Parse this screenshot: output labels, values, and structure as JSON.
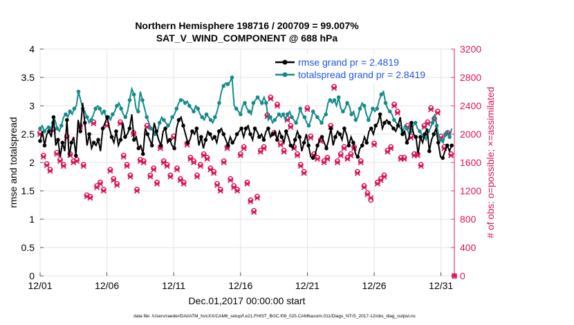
{
  "chart_data": {
    "type": "line",
    "title_line1": "Northern Hemisphere 198716 / 200709 = 99.007%",
    "title_line2": "SAT_V_WIND_COMPONENT @ 688 hPa",
    "xlabel": "Dec.01,2017 00:00:00 start",
    "ylabel_left": "rmse and totalspread",
    "ylabel_right": "# of obs: o=possible; ×=assimilated",
    "footer": "data file: /Users/raeder/DAI/ATM_forcXX/CAM6_setup/f.e21.FHIST_BGC.f09_025.CAM6assim.011/Diags_NTrS_2017-12/obs_diag_output.nc",
    "x_tick_labels": [
      "12/01",
      "12/06",
      "12/11",
      "12/16",
      "12/21",
      "12/26",
      "12/31"
    ],
    "x_tick_days": [
      0,
      5,
      10,
      15,
      20,
      25,
      30
    ],
    "xlim": [
      0,
      31
    ],
    "ylim_left": [
      0,
      4
    ],
    "y_ticks_left": [
      "0",
      "0.5",
      "1",
      "1.5",
      "2",
      "2.5",
      "3",
      "3.5",
      "4"
    ],
    "ylim_right": [
      0,
      3200
    ],
    "y_ticks_right": [
      "0",
      "400",
      "800",
      "1200",
      "1600",
      "2000",
      "2400",
      "2800",
      "3200"
    ],
    "colors": {
      "rmse": "#000000",
      "spread": "#148a8a",
      "obs": "#d8145a",
      "legend_text": "#1f56e6"
    },
    "legend": {
      "rmse_label": "rmse grand pr = 2.4819",
      "spread_label": "totalspread grand pr = 2.8419"
    },
    "series": [
      {
        "name": "rmse",
        "values": [
          2.38,
          2.55,
          2.3,
          2.5,
          2.55,
          2.45,
          2.8,
          2.3,
          2.4,
          2.1,
          2.35,
          2.2,
          2.75,
          2.1,
          2.35,
          2.45,
          2.12,
          2.75,
          2.55,
          3.05,
          2.7,
          2.3,
          2.5,
          2.25,
          2.35,
          2.3,
          2.4,
          2.2,
          2.6,
          2.7,
          2.8,
          2.6,
          2.45,
          2.35,
          2.55,
          2.3,
          2.4,
          2.7,
          2.45,
          2.5,
          2.6,
          2.85,
          2.4,
          2.45,
          2.25,
          2.3,
          2.15,
          2.6,
          2.5,
          2.4,
          2.3,
          2.7,
          2.55,
          2.4,
          2.3,
          2.55,
          2.6,
          2.35,
          2.4,
          2.3,
          2.25,
          2.6,
          2.75,
          2.8,
          2.65,
          2.5,
          2.35,
          2.4,
          2.55,
          2.5,
          2.6,
          2.3,
          2.45,
          2.25,
          2.4,
          2.55,
          2.5,
          2.4,
          2.45,
          2.35,
          2.55,
          2.6,
          2.5,
          2.4,
          2.3,
          2.45,
          2.35,
          2.4,
          2.5,
          2.55,
          2.6,
          2.45,
          2.6,
          2.65,
          2.5,
          2.4,
          2.6,
          2.55,
          2.45,
          2.5,
          2.4,
          2.55,
          2.6,
          2.45,
          2.5,
          2.55,
          2.4,
          2.55,
          2.45,
          2.35,
          2.55,
          2.45,
          2.3,
          2.25,
          2.4,
          2.55,
          2.45,
          2.2,
          2.35,
          2.5,
          2.3,
          2.1,
          2.08,
          2.15,
          2.3,
          2.4,
          2.45,
          2.35,
          2.25,
          2.4,
          2.6,
          2.3,
          2.45,
          2.55,
          2.5,
          2.4,
          2.6,
          2.5,
          2.3,
          2.45,
          2.35,
          2.15,
          2.1,
          2.25,
          2.3,
          2.45,
          2.35,
          2.55,
          2.6,
          2.5,
          2.65,
          2.7,
          2.85,
          2.6,
          2.7,
          2.75,
          2.7,
          2.65,
          2.6,
          2.55,
          2.65,
          2.8,
          2.5,
          2.55,
          2.35,
          2.45,
          2.7,
          2.5,
          2.45,
          2.15,
          2.45,
          2.35,
          2.5,
          2.6,
          2.2,
          2.4,
          2.5,
          2.6,
          2.35,
          2.1,
          2.08,
          2.2,
          2.3,
          2.2,
          2.3
        ],
        "point_days": [
          0,
          4,
          8,
          12,
          16,
          20,
          24,
          28,
          32,
          36,
          40,
          44,
          48,
          52,
          56,
          60,
          64,
          68,
          72,
          76,
          80,
          84,
          88,
          92,
          96,
          100,
          104,
          108,
          112,
          116,
          120,
          124
        ],
        "point_note": "series sampled every 6 hours (values index i -> day i/6); markers shown on selected samples"
      },
      {
        "name": "totalspread",
        "values": [
          2.6,
          2.65,
          2.55,
          2.6,
          2.62,
          2.58,
          2.7,
          2.75,
          2.6,
          2.55,
          2.65,
          2.8,
          2.85,
          2.8,
          2.9,
          2.85,
          2.95,
          3.0,
          3.25,
          3.1,
          2.95,
          2.9,
          2.8,
          2.7,
          2.75,
          2.85,
          2.95,
          3.0,
          2.95,
          2.85,
          2.9,
          2.8,
          2.8,
          2.75,
          2.85,
          2.9,
          3.0,
          3.05,
          2.95,
          2.85,
          2.8,
          2.9,
          3.1,
          3.3,
          3.2,
          2.95,
          2.9,
          3.25,
          3.1,
          2.95,
          2.8,
          2.7,
          2.6,
          2.55,
          2.5,
          2.55,
          2.7,
          2.8,
          2.75,
          2.7,
          2.65,
          2.7,
          2.8,
          2.85,
          2.95,
          3.05,
          3.1,
          3.1,
          3.05,
          3.08,
          3.0,
          2.95,
          2.9,
          3.0,
          2.95,
          2.85,
          2.8,
          2.75,
          2.85,
          2.8,
          2.75,
          2.7,
          2.8,
          2.9,
          3.05,
          3.25,
          3.35,
          3.4,
          3.38,
          3.42,
          3.5,
          3.0,
          2.95,
          2.9,
          2.85,
          3.0,
          3.05,
          2.95,
          2.9,
          2.85,
          3.05,
          3.1,
          3.15,
          3.1,
          3.05,
          3.15,
          3.05,
          2.75,
          2.8,
          2.7,
          2.75,
          2.8,
          2.85,
          2.8,
          2.85,
          2.75,
          2.85,
          2.9,
          2.8,
          2.75,
          2.7,
          2.8,
          2.95,
          2.85,
          2.8,
          2.7,
          2.65,
          2.75,
          2.9,
          2.85,
          2.8,
          2.75,
          2.7,
          2.8,
          2.85,
          3.05,
          3.1,
          3.05,
          3.1,
          3.0,
          3.15,
          2.95,
          2.9,
          2.95,
          3.05,
          3.0,
          2.85,
          2.9,
          2.75,
          2.8,
          2.95,
          3.05,
          3.0,
          2.85,
          2.75,
          2.85,
          2.95,
          2.9,
          2.95,
          3.1,
          3.2,
          3.25,
          3.05,
          2.95,
          2.9,
          2.85,
          2.75,
          2.7,
          2.65,
          2.6,
          2.55,
          2.65,
          2.6,
          2.5,
          2.55,
          2.65,
          2.7,
          2.6,
          2.55,
          2.5,
          2.45,
          2.4,
          2.55,
          2.6,
          2.7,
          2.85,
          2.65,
          2.45,
          2.4,
          2.35,
          2.5,
          2.55,
          2.45,
          2.6
        ]
      },
      {
        "name": "obs_assimilated",
        "axis": "right",
        "marker": "x",
        "x_days": [
          0.0,
          0.25,
          0.5,
          0.75,
          1.0,
          1.25,
          1.5,
          1.75,
          2.0,
          2.25,
          2.5,
          2.75,
          3.0,
          3.25,
          3.5,
          3.75,
          4.0,
          4.25,
          4.5,
          4.75,
          5.0,
          5.25,
          5.5,
          5.75,
          6.0,
          6.25,
          6.5,
          6.75,
          7.0,
          7.25,
          7.5,
          7.75,
          8.0,
          8.25,
          8.5,
          8.75,
          9.0,
          9.25,
          9.5,
          9.75,
          10.0,
          10.25,
          10.5,
          10.75,
          11.0,
          11.25,
          11.5,
          11.75,
          12.0,
          12.25,
          12.5,
          12.75,
          13.0,
          13.25,
          13.5,
          13.75,
          14.0,
          14.25,
          14.5,
          14.75,
          15.0,
          15.25,
          15.5,
          15.75,
          16.0,
          16.25,
          16.5,
          16.75,
          17.0,
          17.25,
          17.5,
          17.75,
          18.0,
          18.25,
          18.5,
          18.75,
          19.0,
          19.25,
          19.5,
          19.75,
          20.0,
          20.25,
          20.5,
          20.75,
          21.0,
          21.25,
          21.5,
          21.75,
          22.0,
          22.25,
          22.5,
          22.75,
          23.0,
          23.25,
          23.5,
          23.75,
          24.0,
          24.25,
          24.5,
          24.75,
          25.0,
          25.25,
          25.5,
          25.75,
          26.0,
          26.25,
          26.5,
          26.75,
          27.0,
          27.25,
          27.5,
          27.75,
          28.0,
          28.25,
          28.5,
          28.75,
          29.0,
          29.25,
          29.5,
          29.75,
          30.0,
          30.25,
          30.5,
          30.75,
          31.0
        ],
        "values": [
          2000,
          1680,
          1560,
          1480,
          2050,
          1720,
          1620,
          1550,
          1950,
          1700,
          1600,
          1620,
          2100,
          1550,
          1120,
          1100,
          2150,
          1250,
          1300,
          1200,
          2120,
          1480,
          1350,
          1280,
          2150,
          1680,
          1550,
          1400,
          2000,
          1200,
          1620,
          1600,
          2100,
          1400,
          1500,
          1300,
          1800,
          1600,
          1550,
          1400,
          1950,
          1500,
          1350,
          1300,
          1850,
          1650,
          1600,
          1400,
          1550,
          1700,
          1650,
          1500,
          1450,
          1280,
          1200,
          1600,
          1800,
          1350,
          1250,
          1200,
          1700,
          1800,
          1300,
          1050,
          900,
          1100,
          1750,
          1800,
          2250,
          2500,
          2000,
          2400,
          1850,
          1750,
          2200,
          2100,
          1800,
          1700,
          1550,
          1450,
          2350,
          1950,
          1700,
          1650,
          1900,
          1600,
          1650,
          2100,
          2650,
          1600,
          1700,
          1800,
          1650,
          1700,
          1800,
          1450,
          1600,
          1250,
          1150,
          1100,
          1850,
          1300,
          1350,
          1400,
          1750,
          1800,
          2400,
          2300,
          1650,
          1650,
          2100,
          1950,
          1700,
          1700,
          1550,
          2100,
          2150,
          2350,
          2200,
          2300,
          1950,
          1800,
          2000,
          1700,
          0
        ]
      },
      {
        "name": "obs_possible",
        "axis": "right",
        "marker": "o",
        "x_days": [
          0.0,
          0.25,
          0.5,
          0.75,
          1.0,
          1.25,
          1.5,
          1.75,
          2.0,
          2.25,
          2.5,
          2.75,
          3.0,
          3.25,
          3.5,
          3.75,
          4.0,
          4.25,
          4.5,
          4.75,
          5.0,
          5.25,
          5.5,
          5.75,
          6.0,
          6.25,
          6.5,
          6.75,
          7.0,
          7.25,
          7.5,
          7.75,
          8.0,
          8.25,
          8.5,
          8.75,
          9.0,
          9.25,
          9.5,
          9.75,
          10.0,
          10.25,
          10.5,
          10.75,
          11.0,
          11.25,
          11.5,
          11.75,
          12.0,
          12.25,
          12.5,
          12.75,
          13.0,
          13.25,
          13.5,
          13.75,
          14.0,
          14.25,
          14.5,
          14.75,
          15.0,
          15.25,
          15.5,
          15.75,
          16.0,
          16.25,
          16.5,
          16.75,
          17.0,
          17.25,
          17.5,
          17.75,
          18.0,
          18.25,
          18.5,
          18.75,
          19.0,
          19.25,
          19.5,
          19.75,
          20.0,
          20.25,
          20.5,
          20.75,
          21.0,
          21.25,
          21.5,
          21.75,
          22.0,
          22.25,
          22.5,
          22.75,
          23.0,
          23.25,
          23.5,
          23.75,
          24.0,
          24.25,
          24.5,
          24.75,
          25.0,
          25.25,
          25.5,
          25.75,
          26.0,
          26.25,
          26.5,
          26.75,
          27.0,
          27.25,
          27.5,
          27.75,
          28.0,
          28.25,
          28.5,
          28.75,
          29.0,
          29.25,
          29.5,
          29.75,
          30.0,
          30.25,
          30.5,
          30.75,
          31.0
        ],
        "values": [
          2020,
          1700,
          1580,
          1500,
          2070,
          1740,
          1640,
          1570,
          1970,
          1720,
          1620,
          1640,
          2120,
          1570,
          1140,
          1120,
          2170,
          1270,
          1320,
          1220,
          2140,
          1500,
          1370,
          1300,
          2170,
          1700,
          1570,
          1420,
          2020,
          1220,
          1640,
          1620,
          2120,
          1420,
          1520,
          1320,
          1820,
          1620,
          1570,
          1420,
          1970,
          1520,
          1370,
          1320,
          1870,
          1670,
          1620,
          1420,
          1570,
          1720,
          1670,
          1520,
          1470,
          1300,
          1220,
          1620,
          1820,
          1370,
          1270,
          1220,
          1720,
          1820,
          1320,
          1070,
          920,
          1120,
          1770,
          1820,
          2270,
          2520,
          2020,
          2420,
          1870,
          1770,
          2220,
          2120,
          1820,
          1720,
          1570,
          1470,
          2370,
          1970,
          1720,
          1670,
          1920,
          1620,
          1670,
          2120,
          2670,
          1620,
          1720,
          1820,
          1670,
          1720,
          1820,
          1470,
          1620,
          1270,
          1170,
          1070,
          1870,
          1320,
          1370,
          1420,
          1770,
          1820,
          2420,
          2320,
          1670,
          1670,
          2120,
          1970,
          1720,
          1720,
          1570,
          2120,
          2170,
          2370,
          2220,
          2320,
          1970,
          1820,
          2020,
          1720,
          0
        ]
      }
    ]
  }
}
